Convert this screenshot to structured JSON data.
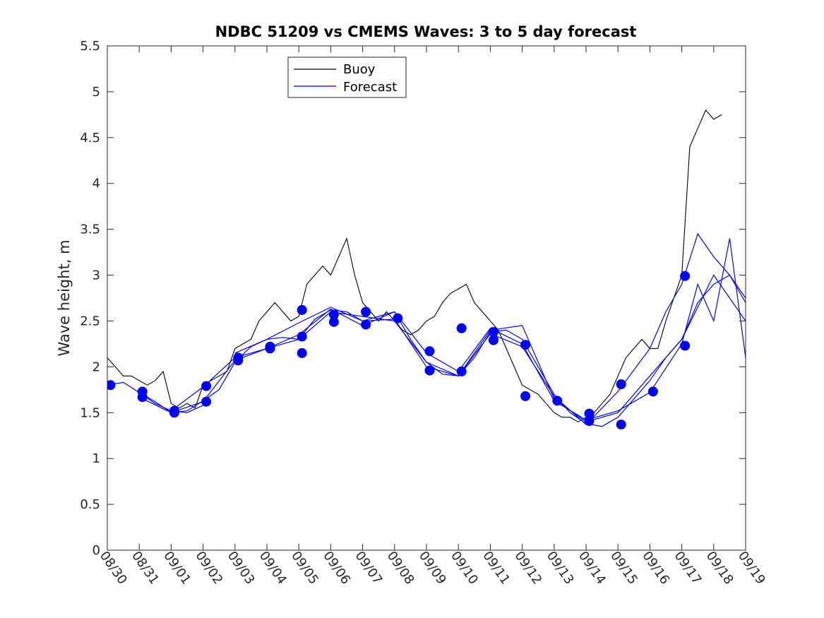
{
  "chart_data": {
    "type": "line",
    "title": "NDBC 51209 vs CMEMS Waves: 3 to 5 day forecast",
    "xlabel": "",
    "ylabel": "Wave height, m",
    "x_unit": "days since 08/30",
    "xlim": [
      0,
      20
    ],
    "ylim": [
      0,
      5.5
    ],
    "yticks": [
      "0",
      "0.5",
      "1",
      "1.5",
      "2",
      "2.5",
      "3",
      "3.5",
      "4",
      "4.5",
      "5",
      "5.5"
    ],
    "xtick_labels": [
      "08/30",
      "08/31",
      "09/01",
      "09/02",
      "09/03",
      "09/04",
      "09/05",
      "09/06",
      "09/07",
      "09/08",
      "09/09",
      "09/10",
      "09/11",
      "09/12",
      "09/13",
      "09/14",
      "09/15",
      "09/16",
      "09/17",
      "09/18",
      "09/19"
    ],
    "grid": false,
    "legend_position": "top-left",
    "legend": [
      "Buoy",
      "Forecast"
    ],
    "colors": {
      "buoy": "#000000",
      "forecast": "#0000ff",
      "axes": "#262626"
    },
    "buoy": {
      "name": "Buoy",
      "x": [
        0,
        0.25,
        0.5,
        0.75,
        1,
        1.25,
        1.5,
        1.75,
        2,
        2.25,
        2.5,
        2.75,
        3,
        3.25,
        3.5,
        3.75,
        4,
        4.25,
        4.5,
        4.75,
        5,
        5.25,
        5.5,
        5.75,
        6,
        6.25,
        6.5,
        6.75,
        7,
        7.25,
        7.5,
        7.75,
        8,
        8.25,
        8.5,
        8.75,
        9,
        9.25,
        9.5,
        9.75,
        10,
        10.25,
        10.5,
        10.75,
        11,
        11.25,
        11.5,
        11.75,
        12,
        12.25,
        12.5,
        12.75,
        13,
        13.25,
        13.5,
        13.75,
        14,
        14.25,
        14.5,
        14.75,
        15,
        15.25,
        15.5,
        15.75,
        16,
        16.25,
        16.5,
        16.75,
        17,
        17.25,
        17.5,
        17.75,
        18,
        18.25,
        18.5,
        18.75,
        19,
        19.25
      ],
      "y": [
        2.1,
        2.0,
        1.9,
        1.9,
        1.85,
        1.8,
        1.85,
        1.95,
        1.6,
        1.55,
        1.6,
        1.55,
        1.8,
        1.85,
        1.9,
        1.95,
        2.2,
        2.25,
        2.3,
        2.5,
        2.6,
        2.7,
        2.6,
        2.5,
        2.55,
        2.9,
        3.0,
        3.1,
        3.0,
        3.2,
        3.4,
        3.0,
        2.7,
        2.6,
        2.5,
        2.6,
        2.5,
        2.4,
        2.35,
        2.4,
        2.5,
        2.55,
        2.7,
        2.8,
        2.85,
        2.9,
        2.7,
        2.6,
        2.5,
        2.4,
        2.2,
        2.0,
        1.8,
        1.75,
        1.7,
        1.6,
        1.5,
        1.45,
        1.45,
        1.4,
        1.45,
        1.5,
        1.6,
        1.7,
        1.9,
        2.1,
        2.2,
        2.3,
        2.2,
        2.2,
        2.5,
        2.75,
        3.0,
        4.4,
        4.6,
        4.8,
        4.7,
        4.75
      ]
    },
    "forecast": {
      "name": "Forecast",
      "series": [
        {
          "x": [
            0,
            0.5,
            1,
            1.5,
            2,
            2.5,
            3
          ],
          "y": [
            1.8,
            1.83,
            1.72,
            1.6,
            1.52,
            1.5,
            1.58
          ]
        },
        {
          "x": [
            1,
            1.5,
            2,
            2.5,
            3,
            3.5,
            4,
            4.5,
            5,
            5.5,
            6,
            6.5,
            7,
            7.5,
            8,
            8.5,
            9,
            9.5,
            10,
            10.5,
            11,
            11.5,
            12,
            12.5,
            13,
            13.5,
            14,
            14.5,
            15,
            15.5,
            16,
            16.5,
            17,
            17.5,
            18,
            18.5,
            19,
            19.5,
            20
          ],
          "y": [
            1.72,
            1.62,
            1.5,
            1.52,
            1.63,
            1.75,
            2.05,
            2.22,
            2.3,
            2.32,
            2.3,
            2.52,
            2.62,
            2.6,
            2.5,
            2.55,
            2.6,
            2.3,
            2.05,
            1.92,
            1.9,
            2.1,
            2.38,
            2.4,
            2.3,
            2.0,
            1.7,
            1.5,
            1.38,
            1.35,
            1.45,
            1.65,
            1.85,
            2.1,
            2.3,
            2.7,
            2.9,
            3.0,
            2.7
          ]
        },
        {
          "x": [
            1,
            2,
            3,
            4,
            5,
            6,
            7,
            8,
            9,
            10,
            11,
            12,
            13,
            14,
            15,
            16,
            17,
            18,
            19,
            20
          ],
          "y": [
            1.67,
            1.5,
            1.62,
            2.07,
            2.2,
            2.3,
            2.6,
            2.55,
            2.5,
            2.05,
            1.9,
            2.4,
            2.45,
            1.65,
            1.4,
            1.5,
            1.9,
            2.3,
            3.0,
            2.5
          ]
        },
        {
          "x": [
            2,
            3,
            4,
            5,
            6,
            7,
            8,
            9,
            10,
            11,
            12,
            13,
            14,
            15,
            16,
            17,
            18,
            18.5,
            19,
            19.5,
            20
          ],
          "y": [
            1.52,
            1.78,
            2.1,
            2.2,
            2.35,
            2.63,
            2.45,
            2.6,
            2.15,
            1.95,
            2.42,
            2.25,
            1.63,
            1.42,
            1.52,
            1.72,
            2.25,
            2.9,
            2.5,
            3.4,
            2.1
          ]
        },
        {
          "x": [
            4,
            5,
            6,
            7,
            8,
            9,
            10,
            11,
            12,
            13,
            14,
            15,
            16,
            17,
            17.5,
            18,
            18.5,
            19,
            19.5,
            20
          ],
          "y": [
            2.15,
            2.3,
            2.48,
            2.65,
            2.5,
            2.52,
            2.0,
            1.9,
            2.36,
            2.22,
            1.68,
            1.37,
            1.73,
            2.2,
            2.6,
            2.9,
            3.45,
            3.2,
            3.0,
            2.75
          ]
        }
      ],
      "markers": {
        "x": [
          0.1,
          1.1,
          1.1,
          2.1,
          2.1,
          3.1,
          3.1,
          4.1,
          4.1,
          5.1,
          5.1,
          6.1,
          6.1,
          6.1,
          7.1,
          7.1,
          8.1,
          8.1,
          9.1,
          10.1,
          10.1,
          11.1,
          11.1,
          12.1,
          12.1,
          13.1,
          13.1,
          14.1,
          15.1,
          15.1,
          16.1,
          16.1,
          17.1,
          18.1,
          18.1
        ],
        "y": [
          1.8,
          1.73,
          1.67,
          1.52,
          1.5,
          1.79,
          1.62,
          2.1,
          2.07,
          2.22,
          2.2,
          2.33,
          2.15,
          2.62,
          2.49,
          2.57,
          2.46,
          2.6,
          2.53,
          2.17,
          1.96,
          1.95,
          2.42,
          2.38,
          2.29,
          2.24,
          1.68,
          1.63,
          1.41,
          1.49,
          1.37,
          1.81,
          1.73,
          2.23,
          2.99
        ]
      }
    }
  }
}
